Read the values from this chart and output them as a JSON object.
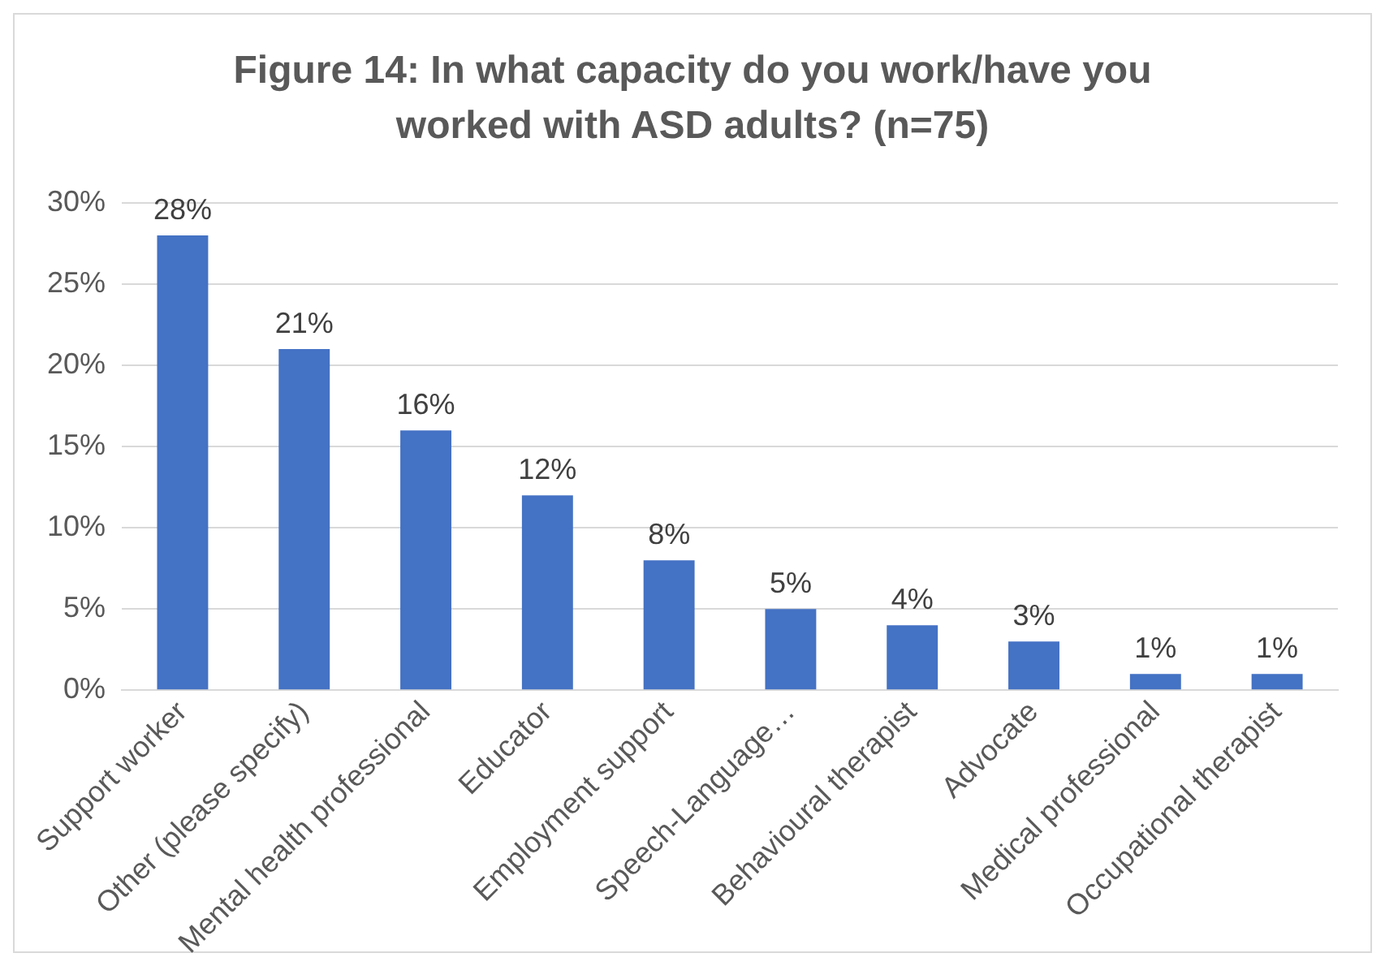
{
  "chart_data": {
    "type": "bar",
    "title": "Figure 14: In what capacity do you work/have you worked with ASD adults? (n=75)",
    "categories": [
      "Support worker",
      "Other (please specify)",
      "Mental health professional",
      "Educator",
      "Employment support",
      "Speech-Language…",
      "Behavioural therapist",
      "Advocate",
      "Medical professional",
      "Occupational therapist"
    ],
    "values": [
      28,
      21,
      16,
      12,
      8,
      5,
      4,
      3,
      1,
      1
    ],
    "color": "#4472c4",
    "ylim": [
      0,
      30
    ],
    "yticks": [
      {
        "value": 0,
        "label": "0%"
      },
      {
        "value": 5,
        "label": "5%"
      },
      {
        "value": 10,
        "label": "10%"
      },
      {
        "value": 15,
        "label": "15%"
      },
      {
        "value": 20,
        "label": "20%"
      },
      {
        "value": 25,
        "label": "25%"
      },
      {
        "value": 30,
        "label": "30%"
      }
    ],
    "value_labels": [
      "28%",
      "21%",
      "16%",
      "12%",
      "8%",
      "5%",
      "4%",
      "3%",
      "1%",
      "1%"
    ],
    "grid": "y",
    "legend": false
  }
}
